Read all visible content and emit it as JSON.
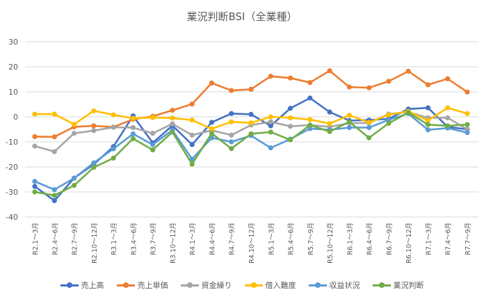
{
  "chart_data": {
    "type": "line",
    "title": "業況判断BSI（全業種）",
    "xlabel": "",
    "ylabel": "",
    "ylim": [
      -40,
      30
    ],
    "yticks": [
      30,
      20,
      10,
      0,
      -10,
      -20,
      -30,
      -40
    ],
    "grid": true,
    "legend_position": "bottom",
    "categories": [
      "R2.1～3月",
      "R2.4～6月",
      "R2.7～9月",
      "R2.10～12月",
      "R3.1～3月",
      "R3.4～6月",
      "R3.7～9月",
      "R3.10～12月",
      "R4.1～3月",
      "R4.4～6月",
      "R4.7～9月",
      "R4.10～12月",
      "R5.1～3月",
      "R5.4～6月",
      "R5.7～9月",
      "R5.10～12月",
      "R6.1～3月",
      "R6.4～6月",
      "R6.7～9月",
      "R6.10～12月",
      "R7.1～3月",
      "R7.4～6月",
      "R7.7～9月"
    ],
    "series": [
      {
        "name": "売上高",
        "color": "#4472C4",
        "values": [
          -27.8,
          -33.5,
          -24.5,
          -19,
          -11.9,
          0.4,
          -10.4,
          -3.5,
          -11.1,
          -2.2,
          1.3,
          1.0,
          -3.6,
          3.4,
          7.5,
          1.9,
          -1.5,
          -1.3,
          -0.8,
          3.1,
          3.6,
          -4.0,
          -5.0
        ]
      },
      {
        "name": "売上単価",
        "color": "#ED7D31",
        "values": [
          -7.9,
          -8.0,
          -4.0,
          -3.6,
          -4.1,
          -1.0,
          0.2,
          2.6,
          5.1,
          13.5,
          10.5,
          11.0,
          16.2,
          15.5,
          13.7,
          18.4,
          11.9,
          11.6,
          14.2,
          18.2,
          12.8,
          15.2,
          9.9
        ]
      },
      {
        "name": "資金繰り",
        "color": "#A5A5A5",
        "values": [
          -11.7,
          -13.9,
          -6.6,
          -5.5,
          -4.2,
          -4.3,
          -6.6,
          -2.8,
          -7.3,
          -5.4,
          -7.3,
          -3.3,
          -2.0,
          -3.8,
          -3.3,
          -4.0,
          -2.5,
          -2.5,
          1.1,
          1.9,
          -0.4,
          -0.4,
          -5.0
        ]
      },
      {
        "name": "借入難度",
        "color": "#FFC000",
        "values": [
          1.1,
          1.1,
          -3.0,
          2.4,
          0.8,
          -0.6,
          -0.3,
          -0.5,
          -1.3,
          -4.8,
          -2.0,
          -2.4,
          0.0,
          -0.4,
          -1.1,
          -2.7,
          0.6,
          -2.2,
          0.8,
          2.2,
          -1.5,
          3.6,
          1.3
        ]
      },
      {
        "name": "収益状況",
        "color": "#5B9BD5",
        "values": [
          -25.8,
          -29.1,
          -24.5,
          -18.4,
          -12.8,
          -6.8,
          -11.1,
          -5.3,
          -16.9,
          -8.4,
          -10.0,
          -7.5,
          -12.4,
          -8.9,
          -4.7,
          -5.2,
          -4.3,
          -4.3,
          -1.2,
          1.3,
          -5.2,
          -4.5,
          -6.3
        ]
      },
      {
        "name": "業況判断",
        "color": "#70AD47",
        "values": [
          -30.0,
          -31.4,
          -27.4,
          -20.2,
          -16.5,
          -8.7,
          -13.2,
          -6.1,
          -18.9,
          -6.6,
          -12.7,
          -6.8,
          -6.1,
          -9.2,
          -3.3,
          -5.9,
          -2.0,
          -8.4,
          -2.6,
          1.7,
          -3.1,
          -3.6,
          -3.1
        ]
      }
    ]
  }
}
